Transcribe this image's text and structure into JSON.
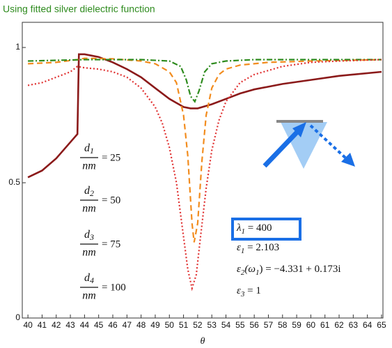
{
  "chart_data": {
    "type": "line",
    "title": "Using fitted silver dielectric function",
    "x_label": "θ",
    "xlim": [
      39.6,
      65.1
    ],
    "ylim": [
      0,
      1.093
    ],
    "xticks": [
      40,
      41,
      42,
      43,
      44,
      45,
      46,
      47,
      48,
      49,
      50,
      51,
      52,
      53,
      54,
      55,
      56,
      57,
      58,
      59,
      60,
      61,
      62,
      63,
      64,
      65
    ],
    "yticks": [
      0,
      0.5,
      1
    ],
    "series": [
      {
        "color": "#8b1a1a",
        "linestyle": "solid",
        "x": [
          40,
          41,
          42,
          43,
          43.5,
          43.6,
          44,
          45,
          46,
          47,
          48,
          49,
          50,
          51,
          51.5,
          52,
          53,
          54,
          55,
          56,
          58,
          60,
          62,
          65
        ],
        "values": [
          0.52,
          0.545,
          0.59,
          0.65,
          0.68,
          0.975,
          0.975,
          0.965,
          0.945,
          0.92,
          0.89,
          0.85,
          0.81,
          0.78,
          0.775,
          0.775,
          0.79,
          0.81,
          0.83,
          0.845,
          0.865,
          0.88,
          0.895,
          0.91
        ]
      },
      {
        "color": "#f28c1e",
        "linestyle": "dashed",
        "x": [
          40,
          42,
          43.5,
          44,
          46,
          48,
          49,
          50,
          50.5,
          51,
          51.3,
          51.6,
          51.75,
          52,
          52.3,
          52.6,
          53,
          53.5,
          54,
          55,
          57,
          60,
          65
        ],
        "values": [
          0.94,
          0.945,
          0.955,
          0.96,
          0.958,
          0.95,
          0.94,
          0.91,
          0.87,
          0.75,
          0.6,
          0.35,
          0.28,
          0.35,
          0.58,
          0.75,
          0.85,
          0.9,
          0.92,
          0.935,
          0.945,
          0.95,
          0.955
        ]
      },
      {
        "color": "#2e8b1e",
        "linestyle": "dashdot",
        "x": [
          40,
          44,
          48,
          50,
          50.8,
          51.2,
          51.5,
          51.8,
          52.1,
          52.5,
          53,
          54,
          56,
          60,
          65
        ],
        "values": [
          0.95,
          0.955,
          0.955,
          0.95,
          0.93,
          0.88,
          0.82,
          0.8,
          0.84,
          0.91,
          0.94,
          0.95,
          0.955,
          0.955,
          0.955
        ]
      },
      {
        "color": "#e03030",
        "linestyle": "dotted",
        "x": [
          40,
          41,
          42,
          43,
          43.5,
          44,
          45,
          46,
          47,
          48,
          49,
          49.5,
          50,
          50.5,
          51,
          51.3,
          51.6,
          51.9,
          52.2,
          52.6,
          53,
          53.5,
          54,
          55,
          56,
          58,
          60,
          62,
          65
        ],
        "values": [
          0.86,
          0.87,
          0.89,
          0.91,
          0.93,
          0.925,
          0.92,
          0.91,
          0.89,
          0.85,
          0.78,
          0.72,
          0.63,
          0.5,
          0.3,
          0.18,
          0.11,
          0.16,
          0.3,
          0.48,
          0.62,
          0.73,
          0.8,
          0.87,
          0.9,
          0.93,
          0.945,
          0.95,
          0.955
        ]
      }
    ],
    "thickness_labels": [
      {
        "symbol": "d",
        "subscript": "1",
        "unit": "nm",
        "rhs": "= 25"
      },
      {
        "symbol": "d",
        "subscript": "2",
        "unit": "nm",
        "rhs": "= 50"
      },
      {
        "symbol": "d",
        "subscript": "3",
        "unit": "nm",
        "rhs": "= 75"
      },
      {
        "symbol": "d",
        "subscript": "4",
        "unit": "nm",
        "rhs": "= 100"
      }
    ],
    "annotations": [
      {
        "symbol": "λ",
        "subscript": "1",
        "rhs": " = 400"
      },
      {
        "symbol": "ε",
        "subscript": "1",
        "rhs": " = 2.103"
      },
      {
        "symbol": "ε",
        "subscript": "2",
        "arg": "(ω",
        "arg_subscript": "1",
        "rhs": ") = −4.331 + 0.173i"
      },
      {
        "symbol": "ε",
        "subscript": "3",
        "rhs": " = 1"
      }
    ]
  }
}
